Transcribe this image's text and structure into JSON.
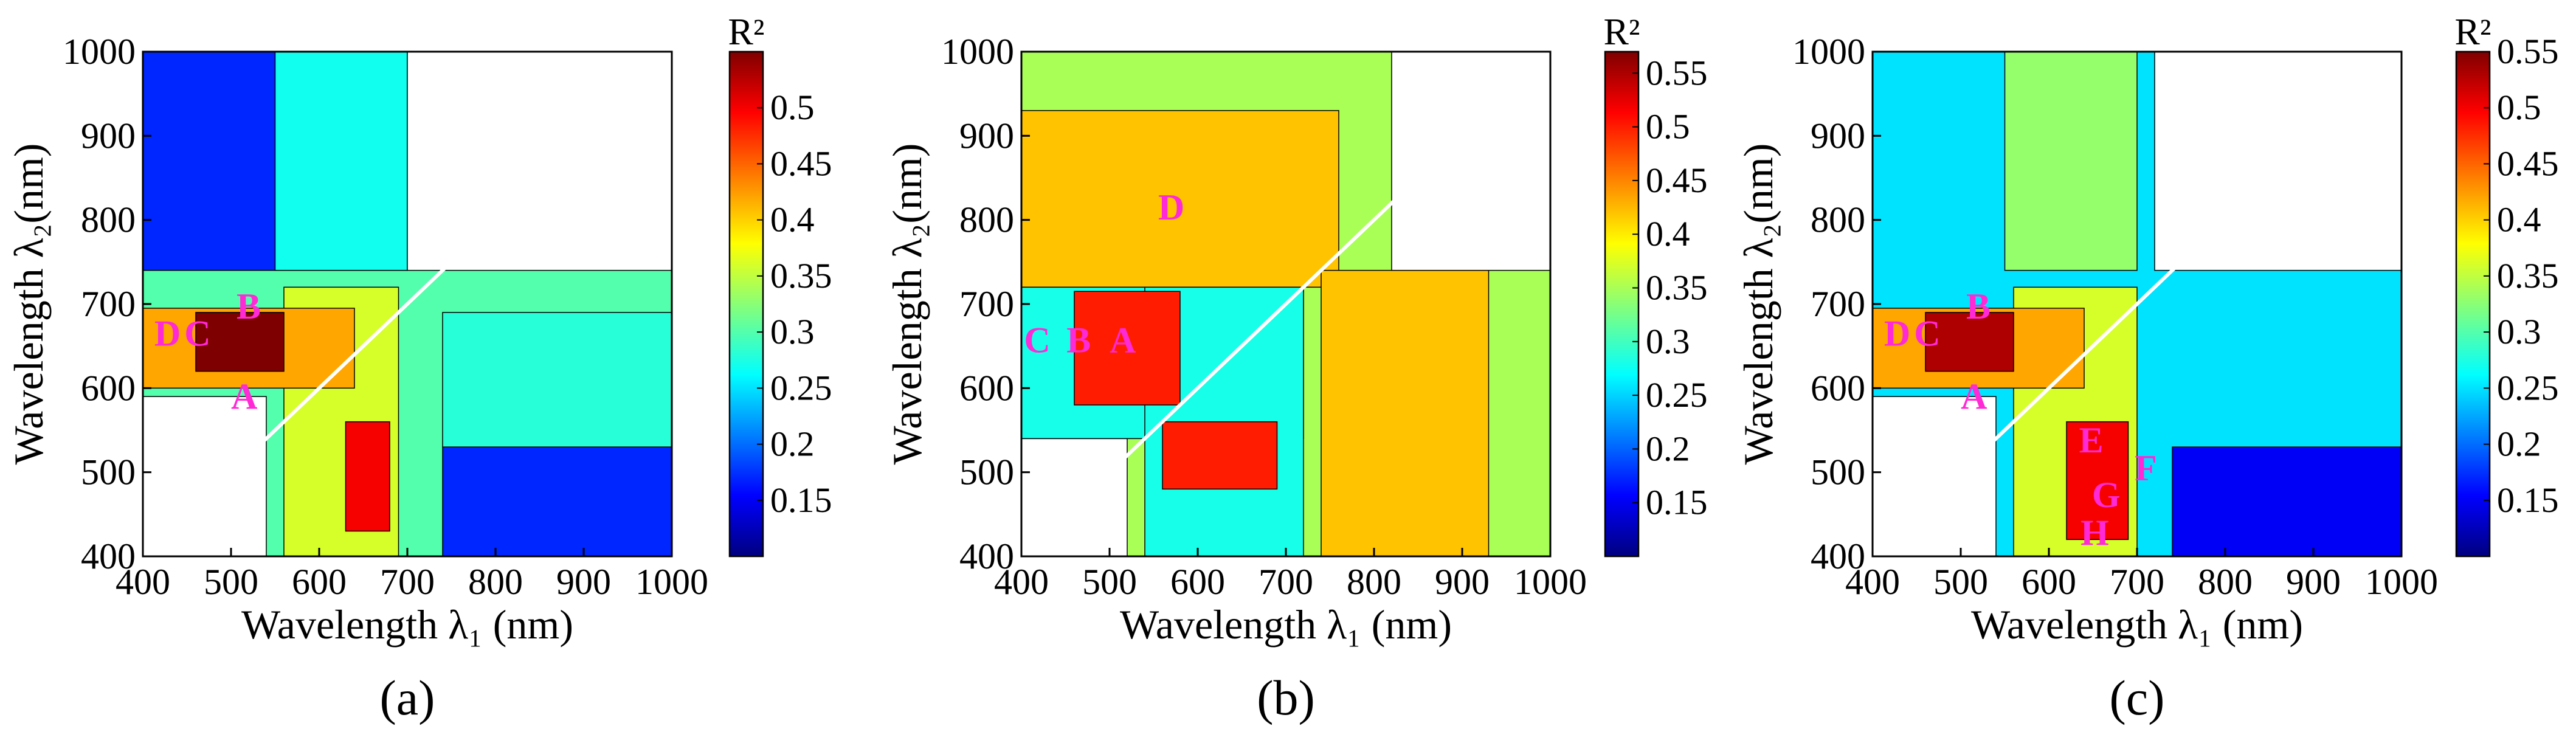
{
  "chart_data": [
    {
      "type": "heatmap",
      "panel_label": "(a)",
      "xlabel": "Wavelength λ₁ (nm)",
      "ylabel": "Wavelength λ₂(nm)",
      "xlim": [
        400,
        1000
      ],
      "ylim": [
        400,
        1000
      ],
      "x_ticks": [
        "400",
        "500",
        "600",
        "700",
        "800",
        "900",
        "1000"
      ],
      "y_ticks": [
        "400",
        "500",
        "600",
        "700",
        "800",
        "900",
        "1000"
      ],
      "colorbar": {
        "title": "R²",
        "range": [
          0.1,
          0.55
        ],
        "ticks": [
          "0.15",
          "0.2",
          "0.25",
          "0.3",
          "0.35",
          "0.4",
          "0.45",
          "0.5"
        ]
      },
      "markers": [
        {
          "label": "A",
          "x": 515,
          "y": 590
        },
        {
          "label": "B",
          "x": 520,
          "y": 697
        },
        {
          "label": "D",
          "x": 428,
          "y": 665
        },
        {
          "label": "C",
          "x": 462,
          "y": 665
        }
      ],
      "regions": [
        {
          "x": [
            400,
            1000
          ],
          "y": [
            400,
            1000
          ],
          "r2": 0.3
        },
        {
          "x": [
            400,
            700
          ],
          "y": [
            740,
            1000
          ],
          "r2": 0.17
        },
        {
          "x": [
            550,
            700
          ],
          "y": [
            740,
            1000
          ],
          "r2": 0.27
        },
        {
          "x": [
            700,
            1000
          ],
          "y": [
            740,
            1000
          ],
          "r2": null
        },
        {
          "x": [
            740,
            1000
          ],
          "y": [
            400,
            530
          ],
          "r2": 0.17
        },
        {
          "x": [
            740,
            1000
          ],
          "y": [
            530,
            690
          ],
          "r2": 0.28
        },
        {
          "x": [
            400,
            540
          ],
          "y": [
            400,
            590
          ],
          "r2": null
        },
        {
          "x": [
            560,
            690
          ],
          "y": [
            400,
            720
          ],
          "r2": 0.36
        },
        {
          "x": [
            400,
            640
          ],
          "y": [
            600,
            695
          ],
          "r2": 0.42
        },
        {
          "x": [
            630,
            680
          ],
          "y": [
            430,
            560
          ],
          "r2": 0.5
        },
        {
          "x": [
            460,
            560
          ],
          "y": [
            620,
            690
          ],
          "r2": 0.55
        }
      ]
    },
    {
      "type": "heatmap",
      "panel_label": "(b)",
      "xlabel": "Wavelength λ₁ (nm)",
      "ylabel": "Wavelength λ₂(nm)",
      "xlim": [
        400,
        1000
      ],
      "ylim": [
        400,
        1000
      ],
      "x_ticks": [
        "400",
        "500",
        "600",
        "700",
        "800",
        "900",
        "1000"
      ],
      "y_ticks": [
        "400",
        "500",
        "600",
        "700",
        "800",
        "900",
        "1000"
      ],
      "colorbar": {
        "title": "R²",
        "range": [
          0.1,
          0.57
        ],
        "ticks": [
          "0.15",
          "0.2",
          "0.25",
          "0.3",
          "0.35",
          "0.4",
          "0.45",
          "0.5",
          "0.55"
        ]
      },
      "markers": [
        {
          "label": "D",
          "x": 570,
          "y": 815
        },
        {
          "label": "C",
          "x": 418,
          "y": 657
        },
        {
          "label": "B",
          "x": 465,
          "y": 657
        },
        {
          "label": "A",
          "x": 515,
          "y": 657
        }
      ],
      "regions": [
        {
          "x": [
            400,
            1000
          ],
          "y": [
            400,
            1000
          ],
          "r2": 0.35
        },
        {
          "x": [
            400,
            760
          ],
          "y": [
            720,
            930
          ],
          "r2": 0.42
        },
        {
          "x": [
            740,
            930
          ],
          "y": [
            400,
            740
          ],
          "r2": 0.42
        },
        {
          "x": [
            820,
            1000
          ],
          "y": [
            740,
            1000
          ],
          "r2": null
        },
        {
          "x": [
            400,
            520
          ],
          "y": [
            400,
            540
          ],
          "r2": null
        },
        {
          "x": [
            400,
            720
          ],
          "y": [
            540,
            720
          ],
          "r2": 0.28
        },
        {
          "x": [
            540,
            720
          ],
          "y": [
            400,
            720
          ],
          "r2": 0.28
        },
        {
          "x": [
            460,
            580
          ],
          "y": [
            580,
            715
          ],
          "r2": 0.5
        },
        {
          "x": [
            560,
            690
          ],
          "y": [
            480,
            560
          ],
          "r2": 0.5
        }
      ]
    },
    {
      "type": "heatmap",
      "panel_label": "(c)",
      "xlabel": "Wavelength λ₁ (nm)",
      "ylabel": "Wavelength λ₂(nm)",
      "xlim": [
        400,
        1000
      ],
      "ylim": [
        400,
        1000
      ],
      "x_ticks": [
        "400",
        "500",
        "600",
        "700",
        "800",
        "900",
        "1000"
      ],
      "y_ticks": [
        "400",
        "500",
        "600",
        "700",
        "800",
        "900",
        "1000"
      ],
      "colorbar": {
        "title": "R²",
        "range": [
          0.1,
          0.55
        ],
        "ticks": [
          "0.15",
          "0.2",
          "0.25",
          "0.3",
          "0.35",
          "0.4",
          "0.45",
          "0.5",
          "0.55"
        ]
      },
      "markers": [
        {
          "label": "A",
          "x": 515,
          "y": 590
        },
        {
          "label": "B",
          "x": 520,
          "y": 697
        },
        {
          "label": "D",
          "x": 428,
          "y": 665
        },
        {
          "label": "C",
          "x": 462,
          "y": 665
        },
        {
          "label": "E",
          "x": 648,
          "y": 538
        },
        {
          "label": "F",
          "x": 710,
          "y": 505
        },
        {
          "label": "G",
          "x": 665,
          "y": 473
        },
        {
          "label": "H",
          "x": 652,
          "y": 428
        }
      ],
      "regions": [
        {
          "x": [
            400,
            1000
          ],
          "y": [
            400,
            1000
          ],
          "r2": 0.25
        },
        {
          "x": [
            550,
            700
          ],
          "y": [
            740,
            1000
          ],
          "r2": 0.33
        },
        {
          "x": [
            720,
            1000
          ],
          "y": [
            740,
            1000
          ],
          "r2": null
        },
        {
          "x": [
            740,
            1000
          ],
          "y": [
            400,
            530
          ],
          "r2": 0.15
        },
        {
          "x": [
            400,
            540
          ],
          "y": [
            400,
            590
          ],
          "r2": null
        },
        {
          "x": [
            560,
            700
          ],
          "y": [
            400,
            720
          ],
          "r2": 0.36
        },
        {
          "x": [
            400,
            640
          ],
          "y": [
            600,
            695
          ],
          "r2": 0.42
        },
        {
          "x": [
            620,
            690
          ],
          "y": [
            420,
            560
          ],
          "r2": 0.5
        },
        {
          "x": [
            460,
            560
          ],
          "y": [
            620,
            690
          ],
          "r2": 0.53
        }
      ]
    }
  ]
}
